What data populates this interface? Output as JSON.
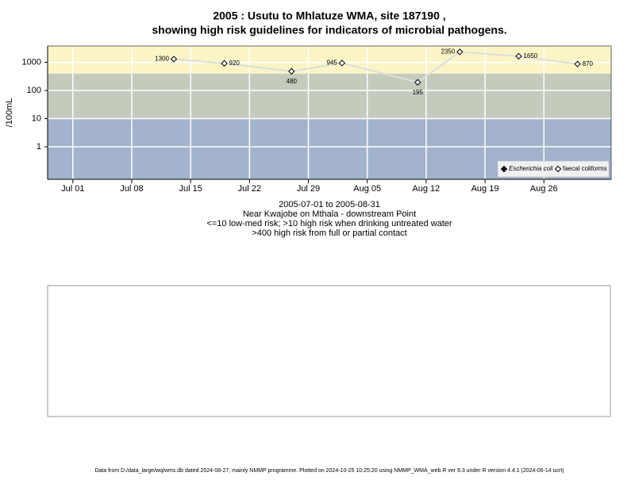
{
  "chart_data": {
    "type": "line",
    "title": "2005 : Usutu to Mhlatuze WMA, site 187190 ,",
    "subtitle": "showing high risk guidelines for indicators of microbial pathogens.",
    "y_label": "/100mL",
    "notes": [
      "2005-07-01 to 2005-08-31",
      "Near Kwajobe on Mthala - downstream Point",
      "<=10 low-med risk; >10 high risk when drinking untreated water",
      ">400 high risk from full or partial contact"
    ],
    "footer": "Data from D:/data_large/wq/wms.db dated 2024-08-27, mainly NMMP programme. Plotted on 2024-10-25 10:25:20 using NMMP_WMA_web.R ver 9.3 under R version 4.4.1 (2024-06-14 ucrt)",
    "x": [
      "2005-07-13",
      "2005-07-19",
      "2005-07-27",
      "2005-08-02",
      "2005-08-11",
      "2005-08-16",
      "2005-08-23",
      "2005-08-30"
    ],
    "series": [
      {
        "name": "Escherichia coli",
        "color": "#000000",
        "values": [
          null,
          null,
          null,
          null,
          null,
          null,
          null,
          null
        ]
      },
      {
        "name": "faecal coliforms",
        "color": "#000000",
        "values": [
          1300,
          920,
          480,
          945,
          195,
          2350,
          1650,
          870
        ]
      }
    ],
    "line_color": "#dddddd",
    "log_scale": true,
    "ylim": [
      0.07,
      3800
    ],
    "yticks": [
      1,
      10,
      100,
      1000
    ],
    "xlim": [
      "2005-06-28",
      "2005-09-03"
    ],
    "xticks": [
      {
        "value": "2005-07-01",
        "label": "Jul 01"
      },
      {
        "value": "2005-07-08",
        "label": "Jul 08"
      },
      {
        "value": "2005-07-15",
        "label": "Jul 15"
      },
      {
        "value": "2005-07-22",
        "label": "Jul 22"
      },
      {
        "value": "2005-07-29",
        "label": "Jul 29"
      },
      {
        "value": "2005-08-05",
        "label": "Aug 05"
      },
      {
        "value": "2005-08-12",
        "label": "Aug 12"
      },
      {
        "value": "2005-08-19",
        "label": "Aug 19"
      },
      {
        "value": "2005-08-26",
        "label": "Aug 26"
      }
    ],
    "thresholds": [
      10,
      400
    ],
    "band_colors": [
      "#a2b3cb",
      "#c3cbbd",
      "#fbf5c6"
    ],
    "grid": true,
    "legend_position": "bottom-right"
  }
}
